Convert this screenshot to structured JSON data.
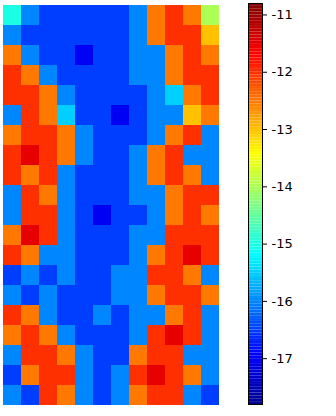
{
  "chart_data": {
    "type": "heatmap",
    "tick_labels": false,
    "cells": [
      [
        -15,
        -16,
        -16.5,
        -16.5,
        -16.5,
        -16.5,
        -16.5,
        -16,
        -12.5,
        -12,
        -12.5,
        -14
      ],
      [
        -16,
        -16.5,
        -16.5,
        -16.5,
        -16.5,
        -16.5,
        -16.5,
        -16,
        -12.5,
        -12,
        -12,
        -13
      ],
      [
        -12.5,
        -16,
        -16.5,
        -16.5,
        -17,
        -16.5,
        -16.5,
        -16,
        -16,
        -12.5,
        -12,
        -12.5
      ],
      [
        -12,
        -12.5,
        -16,
        -16.5,
        -16.5,
        -16.5,
        -16.5,
        -16,
        -16,
        -12.5,
        -12,
        -12
      ],
      [
        -12,
        -12,
        -12.5,
        -16,
        -16.5,
        -16.5,
        -16.5,
        -16.5,
        -16,
        -15.5,
        -12.5,
        -12
      ],
      [
        -16,
        -12,
        -12.5,
        -15.5,
        -16.5,
        -16.5,
        -17,
        -16.5,
        -16,
        -16,
        -13,
        -12.5
      ],
      [
        -12.5,
        -12,
        -12,
        -12.5,
        -16,
        -16.5,
        -16.5,
        -16.5,
        -16,
        -12.5,
        -12,
        -16
      ],
      [
        -12,
        -11.5,
        -12,
        -12.5,
        -16,
        -16.5,
        -16.5,
        -16,
        -12.5,
        -12,
        -16,
        -16
      ],
      [
        -12,
        -12.5,
        -12,
        -16,
        -16.5,
        -16.5,
        -16.5,
        -16,
        -12.5,
        -12,
        -12.5,
        -16
      ],
      [
        -16,
        -12,
        -12.5,
        -16,
        -16.5,
        -16.5,
        -16.5,
        -16,
        -16,
        -12.5,
        -12,
        -12
      ],
      [
        -16,
        -12,
        -12,
        -16,
        -16.5,
        -17,
        -16.5,
        -16.5,
        -16,
        -12.5,
        -12,
        -12.5
      ],
      [
        -12.5,
        -11.5,
        -12,
        -16,
        -16.5,
        -16.5,
        -16.5,
        -16,
        -16,
        -12,
        -12,
        -12
      ],
      [
        -12,
        -12.5,
        -16,
        -16,
        -16.5,
        -16.5,
        -16.5,
        -16,
        -12.5,
        -12,
        -11.5,
        -12
      ],
      [
        -16.5,
        -16,
        -16.5,
        -16,
        -16.5,
        -16.5,
        -16,
        -16,
        -12,
        -12,
        -12.5,
        -16
      ],
      [
        -16,
        -16.5,
        -16,
        -16.5,
        -16.5,
        -16.5,
        -16,
        -16,
        -12.5,
        -12,
        -12,
        -12.5
      ],
      [
        -12,
        -12.5,
        -16,
        -16.5,
        -16.5,
        -16,
        -16.5,
        -16,
        -16,
        -12.5,
        -12,
        -16
      ],
      [
        -12.5,
        -12,
        -12.5,
        -16,
        -16.5,
        -16.5,
        -16.5,
        -16,
        -12,
        -11.5,
        -12,
        -16
      ],
      [
        -16,
        -12,
        -12,
        -12.5,
        -16,
        -16.5,
        -16.5,
        -12.5,
        -12,
        -12,
        -16,
        -16
      ],
      [
        -16.5,
        -12.5,
        -12,
        -12,
        -16,
        -16.5,
        -16,
        -12,
        -11.5,
        -12,
        -12.5,
        -16
      ],
      [
        -16,
        -16.5,
        -12,
        -12.5,
        -16,
        -16.5,
        -16,
        -12.5,
        -12,
        -12,
        -16,
        -16.5
      ]
    ],
    "colorbar_range": [
      -17.8,
      -10.8
    ],
    "colorbar_ticks": [
      -11,
      -12,
      -13,
      -14,
      -15,
      -16,
      -17
    ]
  }
}
